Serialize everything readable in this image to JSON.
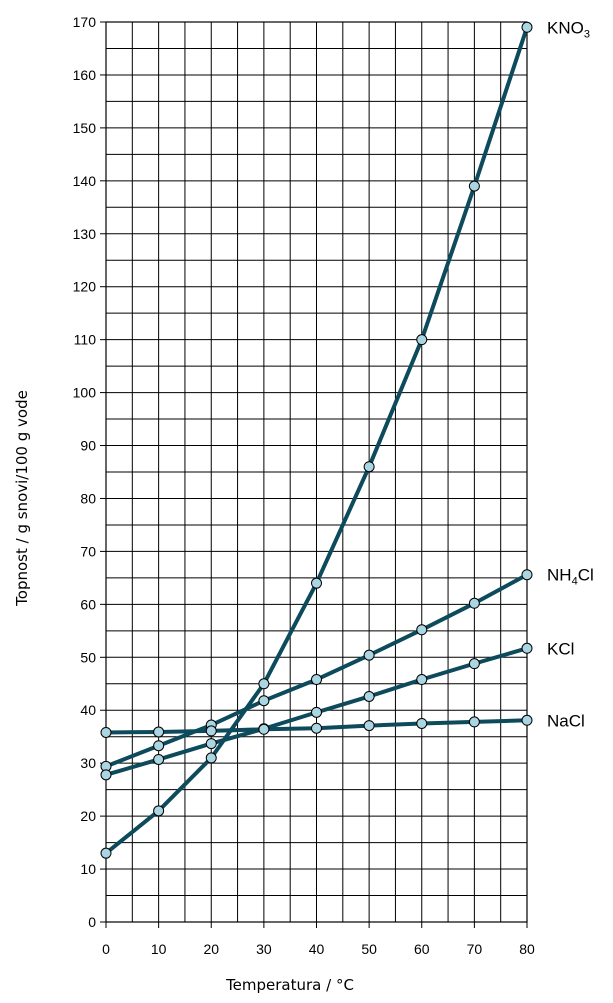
{
  "chart_data": {
    "type": "line",
    "title": "",
    "xlabel": "Temperatura /  °C",
    "ylabel": "Topnost / g snovi/100 g vode",
    "xlim": [
      0,
      80
    ],
    "ylim": [
      0,
      170
    ],
    "x_ticks": [
      0,
      10,
      20,
      30,
      40,
      50,
      60,
      70,
      80
    ],
    "y_ticks": [
      0,
      10,
      20,
      30,
      40,
      50,
      60,
      70,
      80,
      90,
      100,
      110,
      120,
      130,
      140,
      150,
      160,
      170
    ],
    "grid": true,
    "line_color": "#0c4a5c",
    "marker_color": "#a9d6e2",
    "x": [
      0,
      10,
      20,
      30,
      40,
      50,
      60,
      70,
      80
    ],
    "series": [
      {
        "name": "KNO3",
        "label_main": "KNO",
        "label_sub": "3",
        "label_tail": "",
        "values": [
          13,
          21,
          31,
          45,
          64,
          86,
          110,
          139,
          169
        ]
      },
      {
        "name": "NH4Cl",
        "label_main": "NH",
        "label_sub": "4",
        "label_tail": "Cl",
        "values": [
          29.4,
          33.3,
          37.2,
          41.8,
          45.8,
          50.4,
          55.2,
          60.2,
          65.6
        ]
      },
      {
        "name": "KCl",
        "label_main": "KCl",
        "label_sub": "",
        "label_tail": "",
        "values": [
          27.8,
          30.7,
          33.7,
          36.5,
          39.6,
          42.6,
          45.8,
          48.8,
          51.7
        ]
      },
      {
        "name": "NaCl",
        "label_main": "NaCl",
        "label_sub": "",
        "label_tail": "",
        "values": [
          35.8,
          35.9,
          36.1,
          36.4,
          36.6,
          37.1,
          37.5,
          37.8,
          38.1
        ]
      }
    ]
  }
}
